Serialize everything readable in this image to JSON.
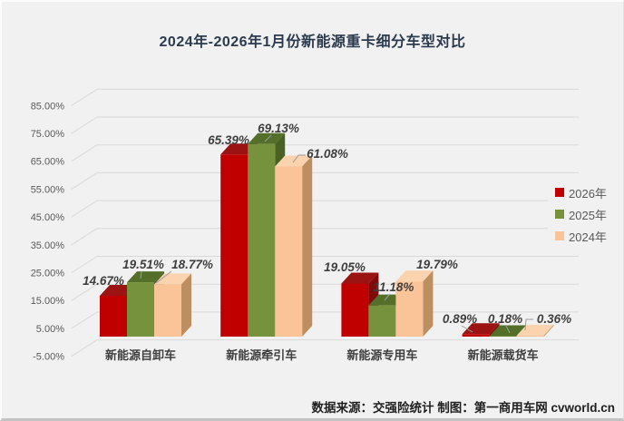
{
  "title": "2024年-2026年1月份新能源重卡细分车型对比",
  "source_note": "数据来源：交强险统计 制图：第一商用车网 cvworld.cn",
  "colors": {
    "background": "#f1f1f1",
    "title_text": "#2b3a4d",
    "grid_line": "#d9d9d9",
    "axis_text": "#595959",
    "data_label_text": "#3f3f3f",
    "leader_line": "#9b9b9b",
    "legend_text": "#595959",
    "source_text": "#1f1f1f"
  },
  "chart_data": {
    "type": "bar",
    "style": "3d-clustered-column",
    "title": "2024年-2026年1月份新能源重卡细分车型对比",
    "categories": [
      "新能源自卸车",
      "新能源牵引车",
      "新能源专用车",
      "新能源载货车"
    ],
    "series": [
      {
        "name": "2026年",
        "color": "#c00000",
        "top_color": "#9b1313",
        "side_color": "#7f0a0a",
        "values": [
          14.67,
          65.39,
          19.05,
          0.89
        ]
      },
      {
        "name": "2025年",
        "color": "#76923c",
        "top_color": "#546f2a",
        "side_color": "#4a6123",
        "values": [
          19.51,
          69.13,
          11.18,
          0.18
        ]
      },
      {
        "name": "2024年",
        "color": "#fac398",
        "top_color": "#fbd3ae",
        "side_color": "#bd8e60",
        "values": [
          18.77,
          61.08,
          19.79,
          0.36
        ]
      }
    ],
    "value_suffix": "%",
    "value_decimals": 2,
    "ylim": [
      -5,
      85
    ],
    "ytick_step": 10,
    "ytick_labels": [
      "-5.00%",
      "5.00%",
      "15.00%",
      "25.00%",
      "35.00%",
      "45.00%",
      "55.00%",
      "65.00%",
      "75.00%",
      "85.00%"
    ],
    "grid": true,
    "legend_position": "right"
  }
}
